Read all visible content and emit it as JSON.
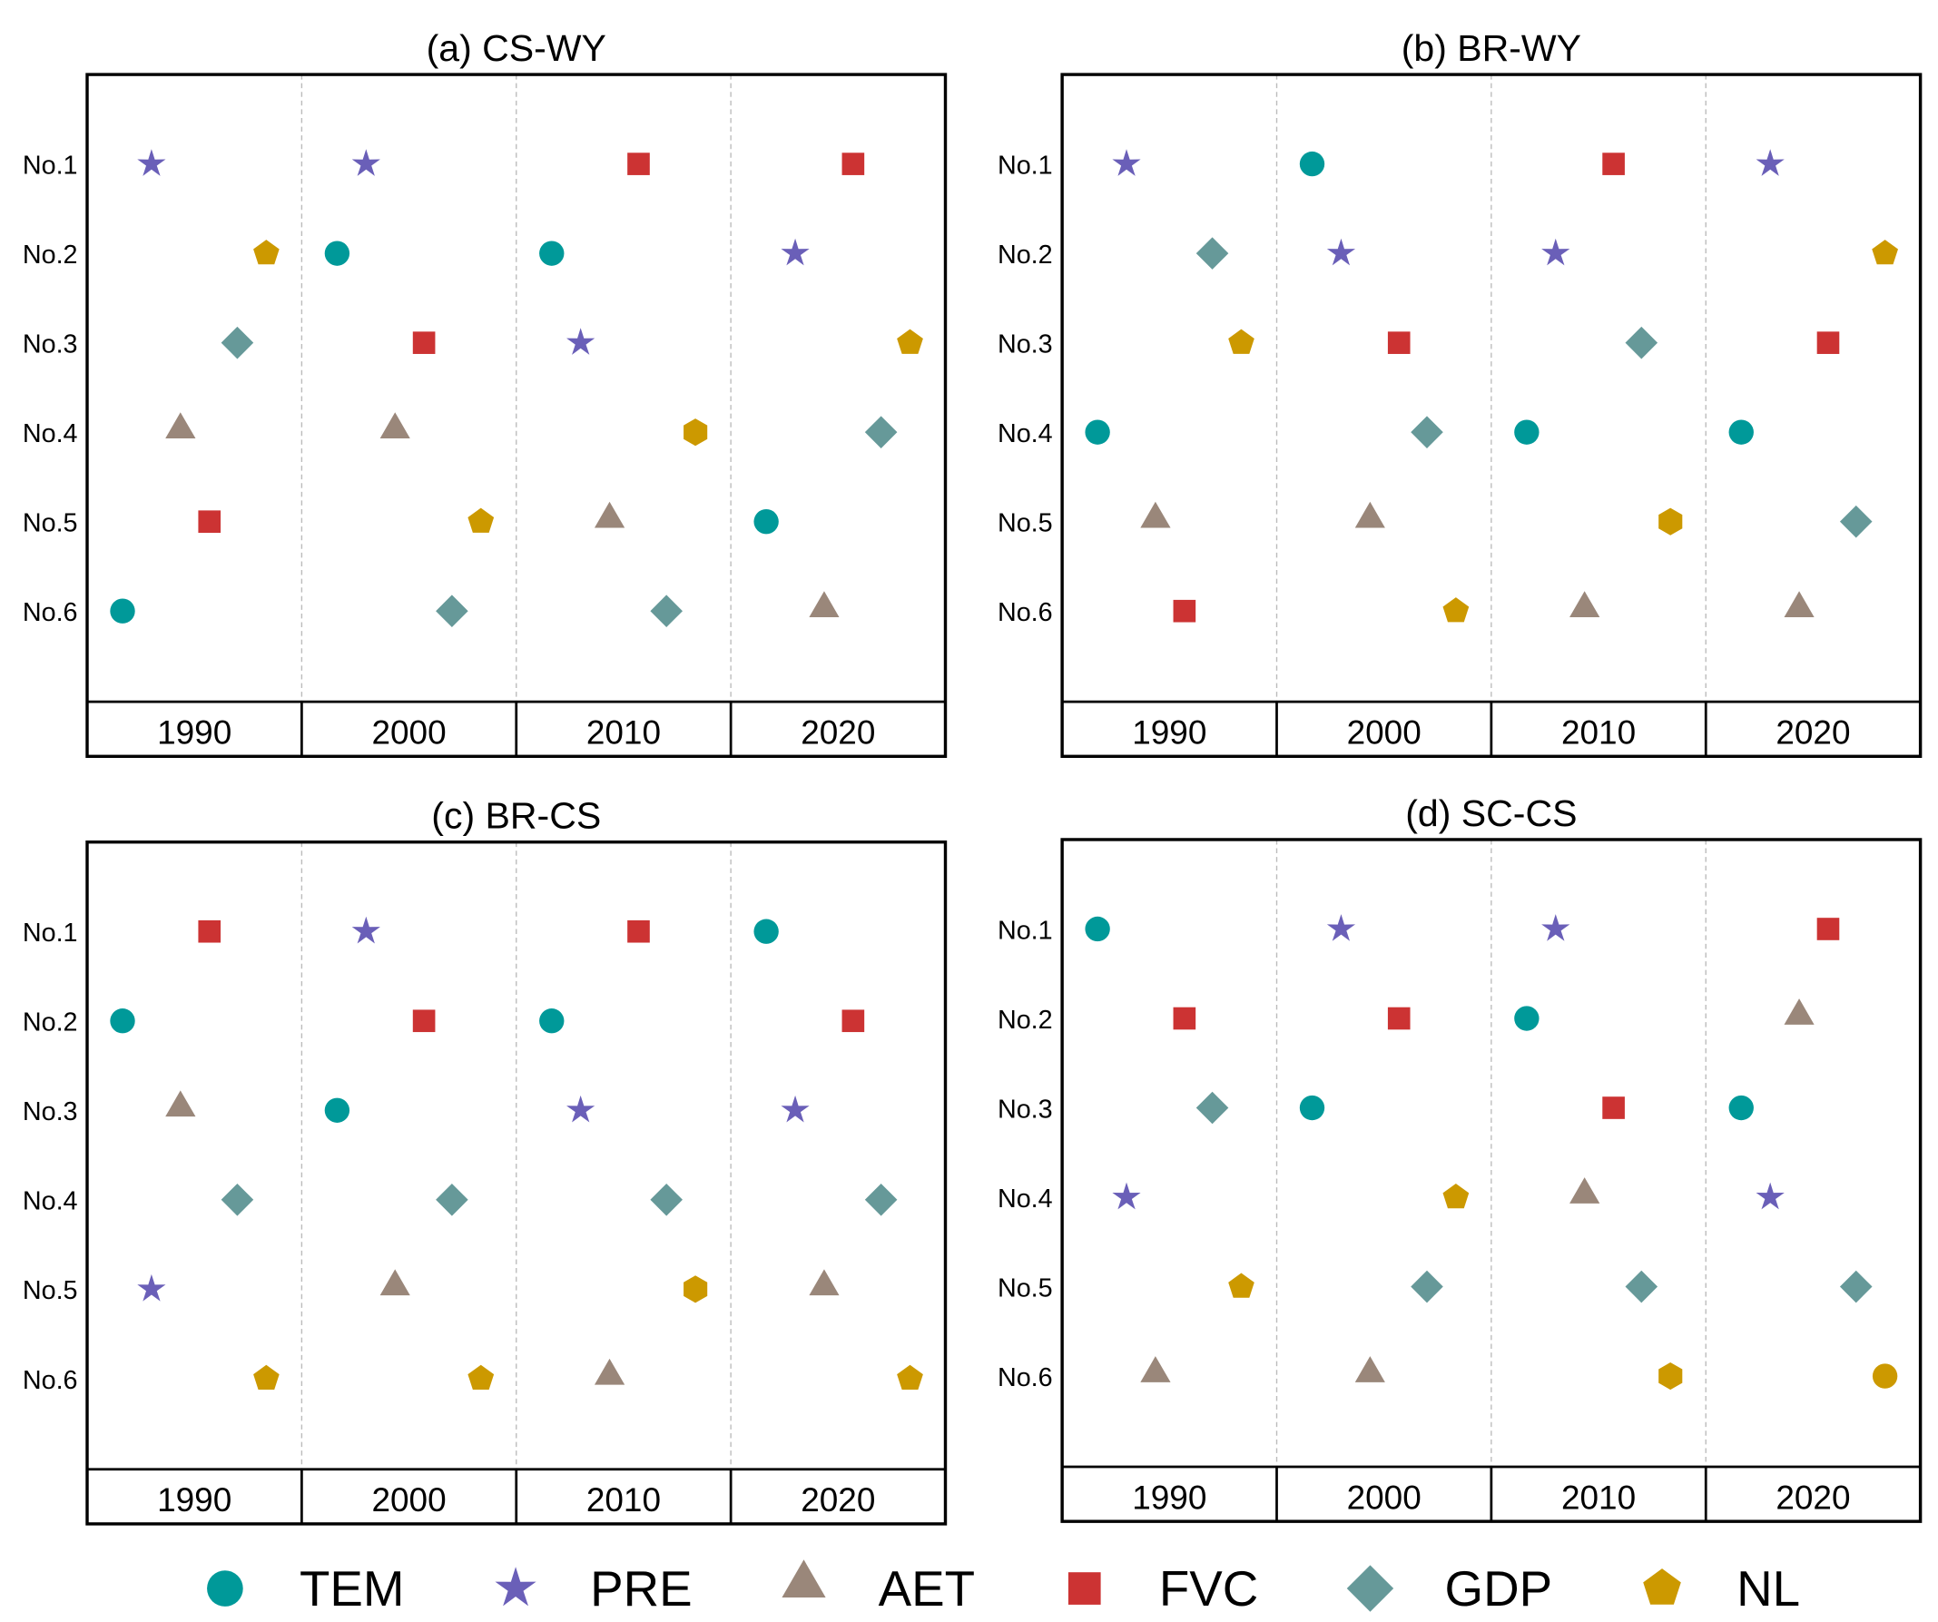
{
  "chart_data": {
    "type": "scatter",
    "factors": [
      "TEM",
      "PRE",
      "AET",
      "FVC",
      "GDP",
      "NL"
    ],
    "factor_colors": {
      "TEM": "#009999",
      "PRE": "#6a5fb8",
      "AET": "#9a877a",
      "FVC": "#cc3333",
      "GDP": "#669999",
      "NL": "#cc9900"
    },
    "factor_markers": {
      "TEM": "circle",
      "PRE": "star",
      "AET": "triangle",
      "FVC": "square",
      "GDP": "diamond",
      "NL": "pentagon"
    },
    "rank_labels": [
      "No.1",
      "No.2",
      "No.3",
      "No.4",
      "No.5",
      "No.6"
    ],
    "years": [
      "1990",
      "2000",
      "2010",
      "2020"
    ],
    "panels": [
      {
        "title": "(a) CS-WY",
        "ranks": {
          "1990": {
            "TEM": 6,
            "PRE": 1,
            "AET": 4,
            "FVC": 5,
            "GDP": 3,
            "NL": 2
          },
          "2000": {
            "TEM": 2,
            "PRE": 1,
            "AET": 4,
            "FVC": 3,
            "GDP": 6,
            "NL": 5
          },
          "2010": {
            "TEM": 2,
            "PRE": 3,
            "AET": 5,
            "FVC": 1,
            "GDP": 6,
            "NL": 4
          },
          "2020": {
            "TEM": 5,
            "PRE": 2,
            "AET": 6,
            "FVC": 1,
            "GDP": 4,
            "NL": 3
          }
        },
        "marker_overrides": {
          "2010": {
            "NL": "hexagon"
          }
        }
      },
      {
        "title": "(b) BR-WY",
        "ranks": {
          "1990": {
            "TEM": 4,
            "PRE": 1,
            "AET": 5,
            "FVC": 6,
            "GDP": 2,
            "NL": 3
          },
          "2000": {
            "TEM": 1,
            "PRE": 2,
            "AET": 5,
            "FVC": 3,
            "GDP": 4,
            "NL": 6
          },
          "2010": {
            "TEM": 4,
            "PRE": 2,
            "AET": 6,
            "FVC": 1,
            "GDP": 3,
            "NL": 5
          },
          "2020": {
            "TEM": 4,
            "PRE": 1,
            "AET": 6,
            "FVC": 3,
            "GDP": 5,
            "NL": 2
          }
        },
        "marker_overrides": {
          "2010": {
            "NL": "hexagon"
          }
        }
      },
      {
        "title": "(c) BR-CS",
        "ranks": {
          "1990": {
            "TEM": 2,
            "PRE": 5,
            "AET": 3,
            "FVC": 1,
            "GDP": 4,
            "NL": 6
          },
          "2000": {
            "TEM": 3,
            "PRE": 1,
            "AET": 5,
            "FVC": 2,
            "GDP": 4,
            "NL": 6
          },
          "2010": {
            "TEM": 2,
            "PRE": 3,
            "AET": 6,
            "FVC": 1,
            "GDP": 4,
            "NL": 5
          },
          "2020": {
            "TEM": 1,
            "PRE": 3,
            "AET": 5,
            "FVC": 2,
            "GDP": 4,
            "NL": 6
          }
        },
        "marker_overrides": {
          "2010": {
            "NL": "hexagon"
          }
        }
      },
      {
        "title": "(d) SC-CS",
        "ranks": {
          "1990": {
            "TEM": 1,
            "PRE": 4,
            "AET": 6,
            "FVC": 2,
            "GDP": 3,
            "NL": 5
          },
          "2000": {
            "TEM": 3,
            "PRE": 1,
            "AET": 6,
            "FVC": 2,
            "GDP": 5,
            "NL": 4
          },
          "2010": {
            "TEM": 2,
            "PRE": 1,
            "AET": 4,
            "FVC": 3,
            "GDP": 5,
            "NL": 6
          },
          "2020": {
            "TEM": 3,
            "PRE": 4,
            "AET": 2,
            "FVC": 1,
            "GDP": 5,
            "NL": 6
          }
        },
        "marker_overrides": {
          "2010": {
            "NL": "hexagon"
          },
          "2020": {
            "NL": "circle"
          }
        }
      }
    ],
    "legend": [
      "TEM",
      "PRE",
      "AET",
      "FVC",
      "GDP",
      "NL"
    ],
    "legend_position": "bottom"
  }
}
